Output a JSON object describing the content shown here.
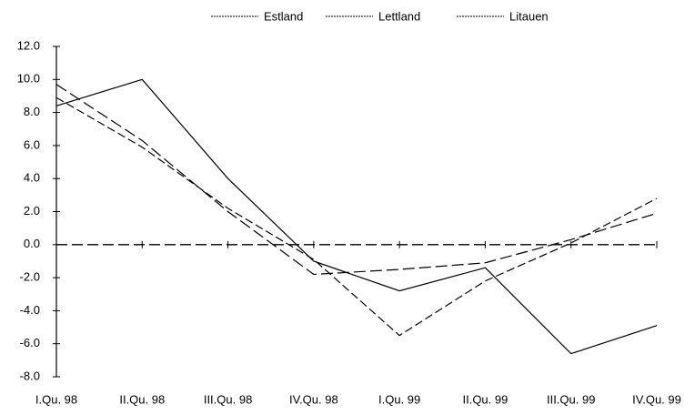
{
  "chart_data": {
    "type": "line",
    "categories": [
      "I.Qu. 98",
      "II.Qu. 98",
      "III.Qu. 98",
      "IV.Qu. 98",
      "I.Qu. 99",
      "II.Qu. 99",
      "III.Qu. 99",
      "IV.Qu. 99"
    ],
    "series": [
      {
        "name": "Estland",
        "color": "#000000",
        "dash": "9 4",
        "values": [
          8.9,
          5.9,
          2.2,
          -0.9,
          -5.5,
          -2.2,
          0.1,
          2.8
        ]
      },
      {
        "name": "Lettland",
        "color": "#000000",
        "dash": "13 5",
        "values": [
          9.7,
          6.3,
          2.0,
          -1.8,
          -1.5,
          -1.1,
          0.3,
          1.9
        ]
      },
      {
        "name": "Litauen",
        "color": "#000000",
        "dash": "none",
        "values": [
          8.4,
          10.0,
          4.0,
          -1.0,
          -2.8,
          -1.4,
          -6.6,
          -4.9
        ]
      }
    ],
    "ylim": [
      -8,
      12
    ],
    "yticks": [
      {
        "value": -8,
        "label": "-8.0"
      },
      {
        "value": -6,
        "label": "-6.0"
      },
      {
        "value": -4,
        "label": "-4.0"
      },
      {
        "value": -2,
        "label": "-2.0"
      },
      {
        "value": 0,
        "label": "0.0"
      },
      {
        "value": 2,
        "label": "2.0"
      },
      {
        "value": 4,
        "label": "4.0"
      },
      {
        "value": 6,
        "label": "6.0"
      },
      {
        "value": 8,
        "label": "8.0"
      },
      {
        "value": 10,
        "label": "10.0"
      },
      {
        "value": 12,
        "label": "12.0"
      }
    ],
    "grid": false,
    "legend": "top"
  }
}
